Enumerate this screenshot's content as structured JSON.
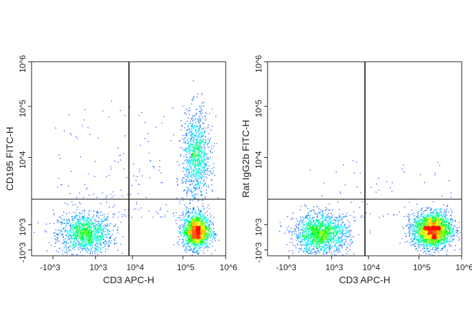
{
  "chart_data": [
    {
      "type": "scatter",
      "subtype": "flow-cytometry-density-dot-plot",
      "xlabel": "CD3 APC-H",
      "ylabel": "CD195 FITC-H",
      "x_scale": "biexponential",
      "y_scale": "biexponential",
      "xlim": [
        -1500,
        1000000
      ],
      "ylim": [
        -1500,
        1000000
      ],
      "x_ticks": [
        "-10^3",
        "10^3",
        "10^4",
        "10^5",
        "10^6"
      ],
      "y_ticks": [
        "-10^3",
        "10^3",
        "10^4",
        "10^5",
        "10^6"
      ],
      "quadrant_gate": {
        "x": 8000,
        "y": 2400
      },
      "populations": [
        {
          "x": 500,
          "y": 300,
          "relative_size": 0.3
        },
        {
          "x": 200000,
          "y": 500,
          "relative_size": 0.4
        },
        {
          "x": 200000,
          "y": 10000,
          "relative_size": 0.25
        }
      ],
      "colormap": [
        "#0000ff",
        "#00ffff",
        "#00ff00",
        "#ffff00",
        "#ff0000"
      ]
    },
    {
      "type": "scatter",
      "subtype": "flow-cytometry-density-dot-plot",
      "xlabel": "CD3 APC-H",
      "ylabel": "Rat IgG2b FITC-H",
      "x_scale": "biexponential",
      "y_scale": "biexponential",
      "xlim": [
        -1500,
        1000000
      ],
      "ylim": [
        -1500,
        1000000
      ],
      "x_ticks": [
        "-10^3",
        "10^3",
        "10^4",
        "10^5",
        "10^6"
      ],
      "y_ticks": [
        "-10^3",
        "10^3",
        "10^4",
        "10^5",
        "10^6"
      ],
      "quadrant_gate": {
        "x": 8000,
        "y": 2400
      },
      "populations": [
        {
          "x": 500,
          "y": 300,
          "relative_size": 0.38
        },
        {
          "x": 200000,
          "y": 600,
          "relative_size": 0.58
        }
      ],
      "colormap": [
        "#0000ff",
        "#00ffff",
        "#00ff00",
        "#ffff00",
        "#ff0000"
      ]
    }
  ]
}
